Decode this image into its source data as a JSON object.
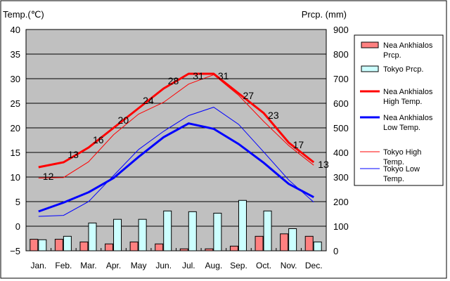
{
  "chart_data": {
    "type": "bar+line",
    "categories": [
      "Jan.",
      "Feb.",
      "Mar.",
      "Apr.",
      "May",
      "Jun.",
      "Jul.",
      "Aug.",
      "Sep.",
      "Oct.",
      "Nov.",
      "Dec."
    ],
    "left_axis": {
      "label": "Temp.(℃)",
      "ylim": [
        -5,
        40
      ],
      "ticks": [
        -5,
        0,
        5,
        10,
        15,
        20,
        25,
        30,
        35,
        40
      ]
    },
    "right_axis": {
      "label": "Prcp. (mm)",
      "ylim": [
        0,
        900
      ],
      "ticks": [
        0,
        100,
        200,
        300,
        400,
        500,
        600,
        700,
        800,
        900
      ]
    },
    "bars": [
      {
        "name": "Nea Ankhialos Prcp.",
        "color": "#ff8080",
        "values": [
          47,
          47,
          36,
          28,
          36,
          28,
          8,
          8,
          19,
          59,
          69,
          59
        ]
      },
      {
        "name": "Tokyo Prcp.",
        "color": "#ccffff",
        "values": [
          45,
          59,
          113,
          128,
          128,
          162,
          159,
          153,
          205,
          162,
          90,
          36
        ]
      }
    ],
    "lines": [
      {
        "name": "Nea Ankhialos High Temp.",
        "color": "#ff0000",
        "width": 3,
        "values": [
          12,
          13,
          16,
          20,
          24,
          28,
          31,
          31,
          27,
          23,
          17,
          13
        ],
        "labels": true
      },
      {
        "name": "Nea Ankhialos Low Temp.",
        "color": "#0000ff",
        "width": 3,
        "values": [
          3.0,
          4.8,
          6.9,
          9.8,
          14.1,
          18.1,
          20.9,
          19.8,
          16.7,
          12.9,
          8.6,
          5.9
        ]
      },
      {
        "name": "Tokyo High Temp.",
        "color": "#ff0000",
        "width": 1,
        "values": [
          9.8,
          9.9,
          13.1,
          18.6,
          22.8,
          25.2,
          28.9,
          30.8,
          26.6,
          21.3,
          16.4,
          12.4
        ]
      },
      {
        "name": "Tokyo Low Temp.",
        "color": "#0000ff",
        "width": 1,
        "values": [
          2.0,
          2.2,
          5.0,
          10.3,
          15.6,
          19.3,
          22.5,
          24.2,
          20.7,
          15.1,
          9.4,
          4.9
        ]
      }
    ],
    "legend_position": "right",
    "grid": true
  }
}
